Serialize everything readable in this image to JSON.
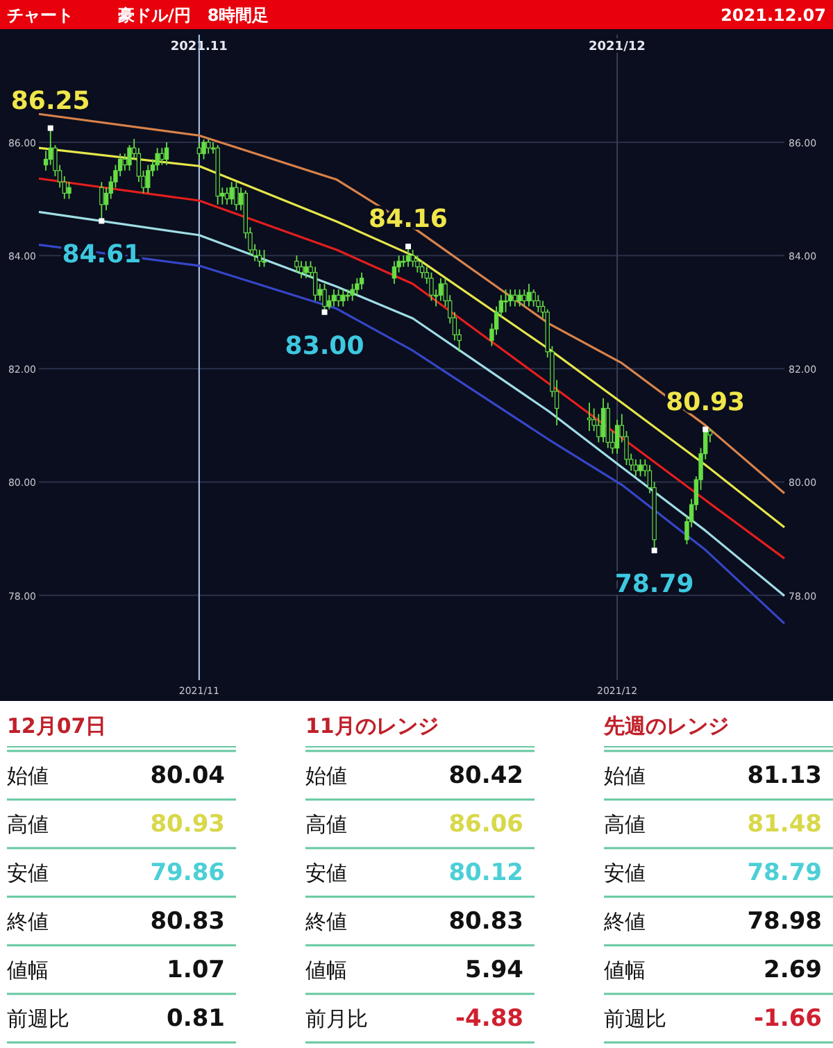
{
  "chart_data": [
    {
      "type": "candlestick",
      "title": "豪ドル/円　8時間足",
      "subtitle": "チャート",
      "color": "#66dd44",
      "x": [
        "2021-10-21T00:00",
        "2021-10-21T08:00",
        "2021-10-21T16:00",
        "2021-10-22T00:00",
        "2021-10-22T08:00",
        "2021-10-22T16:00",
        "2021-10-25T00:00",
        "2021-10-25T08:00",
        "2021-10-25T16:00",
        "2021-10-26T00:00",
        "2021-10-26T08:00",
        "2021-10-26T16:00",
        "2021-10-27T00:00",
        "2021-10-27T08:00",
        "2021-10-27T16:00",
        "2021-10-28T00:00",
        "2021-10-28T08:00",
        "2021-10-28T16:00",
        "2021-10-29T00:00",
        "2021-10-29T08:00",
        "2021-10-29T16:00",
        "2021-11-01T00:00",
        "2021-11-01T08:00",
        "2021-11-01T16:00",
        "2021-11-02T00:00",
        "2021-11-02T08:00",
        "2021-11-02T16:00",
        "2021-11-03T00:00",
        "2021-11-03T08:00",
        "2021-11-03T16:00",
        "2021-11-04T00:00",
        "2021-11-04T08:00",
        "2021-11-04T16:00",
        "2021-11-05T00:00",
        "2021-11-05T08:00",
        "2021-11-05T16:00",
        "2021-11-08T00:00",
        "2021-11-08T08:00",
        "2021-11-08T16:00",
        "2021-11-09T00:00",
        "2021-11-09T08:00",
        "2021-11-09T16:00",
        "2021-11-10T00:00",
        "2021-11-10T08:00",
        "2021-11-10T16:00",
        "2021-11-11T00:00",
        "2021-11-11T08:00",
        "2021-11-11T16:00",
        "2021-11-12T00:00",
        "2021-11-12T08:00",
        "2021-11-12T16:00",
        "2021-11-15T00:00",
        "2021-11-15T08:00",
        "2021-11-15T16:00",
        "2021-11-16T00:00",
        "2021-11-16T08:00",
        "2021-11-16T16:00",
        "2021-11-17T00:00",
        "2021-11-17T08:00",
        "2021-11-17T16:00",
        "2021-11-18T00:00",
        "2021-11-18T08:00",
        "2021-11-18T16:00",
        "2021-11-19T00:00",
        "2021-11-19T08:00",
        "2021-11-19T16:00",
        "2021-11-22T00:00",
        "2021-11-22T08:00",
        "2021-11-22T16:00",
        "2021-11-23T00:00",
        "2021-11-23T08:00",
        "2021-11-23T16:00",
        "2021-11-24T00:00",
        "2021-11-24T08:00",
        "2021-11-24T16:00",
        "2021-11-25T00:00",
        "2021-11-25T08:00",
        "2021-11-25T16:00",
        "2021-11-26T00:00",
        "2021-11-26T08:00",
        "2021-11-26T16:00",
        "2021-11-29T00:00",
        "2021-11-29T08:00",
        "2021-11-29T16:00",
        "2021-11-30T00:00",
        "2021-11-30T08:00",
        "2021-11-30T16:00",
        "2021-12-01T00:00",
        "2021-12-01T08:00",
        "2021-12-01T16:00",
        "2021-12-02T00:00",
        "2021-12-02T08:00",
        "2021-12-02T16:00",
        "2021-12-03T00:00",
        "2021-12-03T08:00",
        "2021-12-03T16:00",
        "2021-12-06T00:00",
        "2021-12-06T08:00",
        "2021-12-06T16:00",
        "2021-12-07T00:00",
        "2021-12-07T08:00",
        "2021-12-07T16:00"
      ],
      "ohlc": [
        [
          85.6,
          85.85,
          85.5,
          85.7
        ],
        [
          85.7,
          86.25,
          85.6,
          85.9
        ],
        [
          85.9,
          85.95,
          85.4,
          85.5
        ],
        [
          85.5,
          85.6,
          85.2,
          85.3
        ],
        [
          85.3,
          85.4,
          85.0,
          85.1
        ],
        [
          85.1,
          85.3,
          85.0,
          85.2
        ],
        [
          85.2,
          85.3,
          84.61,
          84.9
        ],
        [
          84.9,
          85.2,
          84.8,
          85.1
        ],
        [
          85.1,
          85.4,
          85.0,
          85.3
        ],
        [
          85.3,
          85.6,
          85.2,
          85.5
        ],
        [
          85.5,
          85.8,
          85.4,
          85.7
        ],
        [
          85.7,
          85.8,
          85.5,
          85.6
        ],
        [
          85.6,
          85.95,
          85.5,
          85.9
        ],
        [
          85.9,
          86.06,
          85.7,
          85.8
        ],
        [
          85.8,
          85.9,
          85.3,
          85.4
        ],
        [
          85.4,
          85.5,
          85.1,
          85.2
        ],
        [
          85.2,
          85.6,
          85.1,
          85.5
        ],
        [
          85.5,
          85.7,
          85.4,
          85.6
        ],
        [
          85.6,
          85.9,
          85.5,
          85.8
        ],
        [
          85.8,
          85.9,
          85.6,
          85.7
        ],
        [
          85.7,
          86.0,
          85.6,
          85.9
        ],
        [
          85.9,
          86.0,
          85.7,
          85.8
        ],
        [
          85.8,
          86.05,
          85.7,
          86.0
        ],
        [
          86.0,
          86.05,
          85.8,
          85.9
        ],
        [
          85.9,
          86.0,
          85.8,
          85.9
        ],
        [
          85.9,
          85.95,
          84.9,
          85.05
        ],
        [
          85.05,
          85.2,
          84.9,
          85.1
        ],
        [
          85.1,
          85.2,
          84.9,
          85.0
        ],
        [
          85.0,
          85.3,
          84.9,
          85.2
        ],
        [
          85.2,
          85.3,
          84.8,
          84.9
        ],
        [
          84.9,
          85.2,
          84.8,
          85.1
        ],
        [
          85.1,
          85.15,
          84.3,
          84.4
        ],
        [
          84.4,
          84.5,
          84.0,
          84.1
        ],
        [
          84.1,
          84.2,
          83.9,
          84.0
        ],
        [
          84.0,
          84.1,
          83.8,
          83.9
        ],
        [
          83.9,
          84.1,
          83.8,
          83.9
        ],
        [
          83.9,
          84.0,
          83.7,
          83.8
        ],
        [
          83.8,
          83.9,
          83.6,
          83.7
        ],
        [
          83.7,
          83.9,
          83.6,
          83.8
        ],
        [
          83.8,
          83.9,
          83.6,
          83.7
        ],
        [
          83.7,
          83.8,
          83.2,
          83.3
        ],
        [
          83.3,
          83.5,
          83.2,
          83.4
        ],
        [
          83.4,
          83.5,
          83.0,
          83.1
        ],
        [
          83.1,
          83.3,
          83.05,
          83.2
        ],
        [
          83.2,
          83.4,
          83.1,
          83.3
        ],
        [
          83.3,
          83.4,
          83.1,
          83.2
        ],
        [
          83.2,
          83.4,
          83.1,
          83.3
        ],
        [
          83.3,
          83.4,
          83.2,
          83.3
        ],
        [
          83.3,
          83.5,
          83.2,
          83.4
        ],
        [
          83.4,
          83.6,
          83.3,
          83.5
        ],
        [
          83.5,
          83.7,
          83.4,
          83.6
        ],
        [
          83.6,
          83.9,
          83.5,
          83.8
        ],
        [
          83.8,
          84.0,
          83.7,
          83.9
        ],
        [
          83.9,
          84.0,
          83.8,
          83.9
        ],
        [
          83.9,
          84.16,
          83.8,
          84.0
        ],
        [
          84.0,
          84.1,
          83.8,
          83.9
        ],
        [
          83.9,
          84.0,
          83.7,
          83.8
        ],
        [
          83.8,
          83.9,
          83.6,
          83.7
        ],
        [
          83.7,
          83.8,
          83.5,
          83.6
        ],
        [
          83.6,
          83.7,
          83.2,
          83.3
        ],
        [
          83.3,
          83.4,
          83.1,
          83.3
        ],
        [
          83.3,
          83.6,
          83.2,
          83.5
        ],
        [
          83.5,
          83.6,
          83.1,
          83.2
        ],
        [
          83.2,
          83.3,
          82.8,
          82.9
        ],
        [
          82.9,
          83.0,
          82.5,
          82.6
        ],
        [
          82.6,
          82.7,
          82.3,
          82.5
        ],
        [
          82.5,
          82.8,
          82.4,
          82.7
        ],
        [
          82.7,
          83.1,
          82.6,
          83.0
        ],
        [
          83.0,
          83.3,
          82.9,
          83.2
        ],
        [
          83.2,
          83.4,
          83.0,
          83.2
        ],
        [
          83.2,
          83.4,
          83.1,
          83.3
        ],
        [
          83.3,
          83.4,
          83.1,
          83.2
        ],
        [
          83.2,
          83.4,
          83.1,
          83.3
        ],
        [
          83.3,
          83.4,
          83.1,
          83.2
        ],
        [
          83.2,
          83.5,
          83.1,
          83.35
        ],
        [
          83.35,
          83.4,
          83.1,
          83.2
        ],
        [
          83.2,
          83.3,
          83.0,
          83.1
        ],
        [
          83.1,
          83.2,
          82.9,
          83.0
        ],
        [
          83.0,
          83.05,
          82.2,
          82.3
        ],
        [
          82.3,
          82.4,
          81.5,
          81.6
        ],
        [
          81.6,
          81.8,
          81.0,
          81.3
        ],
        [
          81.13,
          81.4,
          80.9,
          81.1
        ],
        [
          81.1,
          81.3,
          80.9,
          81.0
        ],
        [
          81.0,
          81.2,
          80.7,
          80.8
        ],
        [
          80.8,
          81.48,
          80.7,
          81.3
        ],
        [
          81.3,
          81.4,
          80.6,
          80.7
        ],
        [
          80.7,
          80.9,
          80.5,
          80.6
        ],
        [
          80.6,
          81.1,
          80.5,
          81.0
        ],
        [
          81.0,
          81.2,
          80.7,
          80.8
        ],
        [
          80.8,
          80.9,
          80.3,
          80.4
        ],
        [
          80.4,
          80.5,
          80.2,
          80.3
        ],
        [
          80.3,
          80.4,
          80.1,
          80.2
        ],
        [
          80.2,
          80.4,
          80.1,
          80.3
        ],
        [
          80.3,
          80.4,
          80.1,
          80.2
        ],
        [
          80.2,
          80.3,
          79.8,
          79.9
        ],
        [
          79.9,
          80.0,
          78.79,
          78.98
        ],
        [
          78.98,
          79.4,
          78.9,
          79.3
        ],
        [
          79.3,
          79.7,
          79.2,
          79.6
        ],
        [
          79.6,
          80.1,
          79.5,
          80.04
        ],
        [
          80.04,
          80.6,
          79.86,
          80.5
        ],
        [
          80.5,
          80.93,
          80.4,
          80.9
        ],
        [
          80.9,
          80.93,
          80.7,
          80.83
        ]
      ],
      "series": [
        {
          "type": "line",
          "color": "#d9824a",
          "x": [
            "2021-10-20T12:00",
            "2021-11-01T00:00",
            "2021-11-10T21:00",
            "2021-11-16T08:00",
            "2021-11-26T02:00",
            "2021-12-01T08:00",
            "2021-12-07T08:00",
            "2021-12-13T00:00"
          ],
          "values": [
            86.5,
            86.12,
            85.34,
            84.5,
            82.8,
            82.1,
            81.0,
            79.8
          ]
        },
        {
          "type": "line",
          "color": "#e6e64a",
          "x": [
            "2021-10-20T12:00",
            "2021-11-01T00:00",
            "2021-11-10T21:00",
            "2021-11-16T08:00",
            "2021-11-26T02:00",
            "2021-12-01T08:00",
            "2021-12-07T08:00",
            "2021-12-13T00:00"
          ],
          "values": [
            85.9,
            85.58,
            84.6,
            84.0,
            82.35,
            81.4,
            80.3,
            79.2
          ]
        },
        {
          "type": "line",
          "color": "#e41e1e",
          "x": [
            "2021-10-20T12:00",
            "2021-11-01T00:00",
            "2021-11-10T21:00",
            "2021-11-16T08:00",
            "2021-11-26T02:00",
            "2021-12-01T08:00",
            "2021-12-07T08:00",
            "2021-12-13T00:00"
          ],
          "values": [
            85.36,
            84.97,
            84.1,
            83.5,
            81.74,
            80.78,
            79.68,
            78.65
          ]
        },
        {
          "type": "line",
          "color": "#9fdde6",
          "x": [
            "2021-10-20T12:00",
            "2021-11-01T00:00",
            "2021-11-10T21:00",
            "2021-11-16T08:00",
            "2021-11-26T02:00",
            "2021-12-01T08:00",
            "2021-12-07T08:00",
            "2021-12-13T00:00"
          ],
          "values": [
            84.77,
            84.36,
            83.45,
            82.89,
            81.25,
            80.26,
            79.14,
            77.99
          ]
        },
        {
          "type": "line",
          "color": "#3646c8",
          "x": [
            "2021-10-20T12:00",
            "2021-11-01T00:00",
            "2021-11-10T21:00",
            "2021-11-16T08:00",
            "2021-11-26T02:00",
            "2021-12-01T08:00",
            "2021-12-07T08:00",
            "2021-12-13T00:00"
          ],
          "values": [
            84.19,
            83.82,
            83.06,
            82.32,
            80.75,
            79.95,
            78.8,
            77.5
          ]
        }
      ],
      "xlim": [
        "2021-10-20T12:00",
        "2021-12-13T00:00"
      ],
      "ylim": [
        76.5,
        87.9
      ],
      "yticks": [
        {
          "value": 78,
          "label": "78.00"
        },
        {
          "value": 80,
          "label": "80.00"
        },
        {
          "value": 82,
          "label": "82.00"
        },
        {
          "value": 84,
          "label": "84.00"
        },
        {
          "value": 86,
          "label": "86.00"
        }
      ],
      "y2lim": [
        76.5,
        87.9
      ],
      "y2ticks": [
        {
          "value": 78,
          "label": "78.00"
        },
        {
          "value": 80,
          "label": "80.00"
        },
        {
          "value": 82,
          "label": "82.00"
        },
        {
          "value": 84,
          "label": "84.00"
        },
        {
          "value": 86,
          "label": "86.00"
        }
      ],
      "xticks": [
        {
          "value": "2021-11-01",
          "label": "2021/11"
        },
        {
          "value": "2021-12-01",
          "label": "2021/12"
        }
      ],
      "x2lim": [
        "2021-10-17T17:00",
        "2021-12-16T12:00"
      ],
      "x2ticks": [
        {
          "value": "2021-11-01",
          "label": "2021.11"
        },
        {
          "value": "2021-12-01",
          "label": "2021/12"
        }
      ],
      "grid": true,
      "ref_lines": [
        {
          "axis": "x",
          "value": "2021-11-01",
          "color": "#a8c8f0"
        }
      ],
      "annotations": [
        "2021.12.07",
        {
          "text": "86.25",
          "x": "2021-10-21T08:00",
          "y": 86.25
        },
        {
          "text": "84.61",
          "x": "2021-10-25T00:00",
          "y": 84.61
        },
        {
          "text": "84.16",
          "x": "2021-11-16T00:00",
          "y": 84.16
        },
        {
          "text": "83.00",
          "x": "2021-11-10T00:00",
          "y": 83.0
        },
        {
          "text": "80.93",
          "x": "2021-12-07T08:00",
          "y": 80.93
        },
        {
          "text": "78.79",
          "x": "2021-12-03T16:00",
          "y": 78.79
        }
      ]
    },
    {
      "type": "other",
      "title": "12月07日",
      "colors": [
        "#111111",
        "#d8d84a",
        "#4ccfd6",
        "#111111",
        "#111111",
        "#111111"
      ],
      "annotations": [
        "始値",
        "80.04",
        "高値",
        "80.93",
        "安値",
        "79.86",
        "終値",
        "80.83",
        "値幅",
        "1.07",
        "前週比",
        "0.81"
      ]
    },
    {
      "type": "other",
      "title": "11月のレンジ",
      "colors": [
        "#111111",
        "#d8d84a",
        "#4ccfd6",
        "#111111",
        "#111111",
        "#d02030"
      ],
      "annotations": [
        "始値",
        "80.42",
        "高値",
        "86.06",
        "安値",
        "80.12",
        "終値",
        "80.83",
        "値幅",
        "5.94",
        "前月比",
        "-4.88"
      ]
    },
    {
      "type": "other",
      "title": "先週のレンジ",
      "colors": [
        "#111111",
        "#d8d84a",
        "#4ccfd6",
        "#111111",
        "#111111",
        "#d02030"
      ],
      "annotations": [
        "始値",
        "81.13",
        "高値",
        "81.48",
        "安値",
        "78.79",
        "終値",
        "78.98",
        "値幅",
        "2.69",
        "前週比",
        "-1.66"
      ]
    }
  ]
}
